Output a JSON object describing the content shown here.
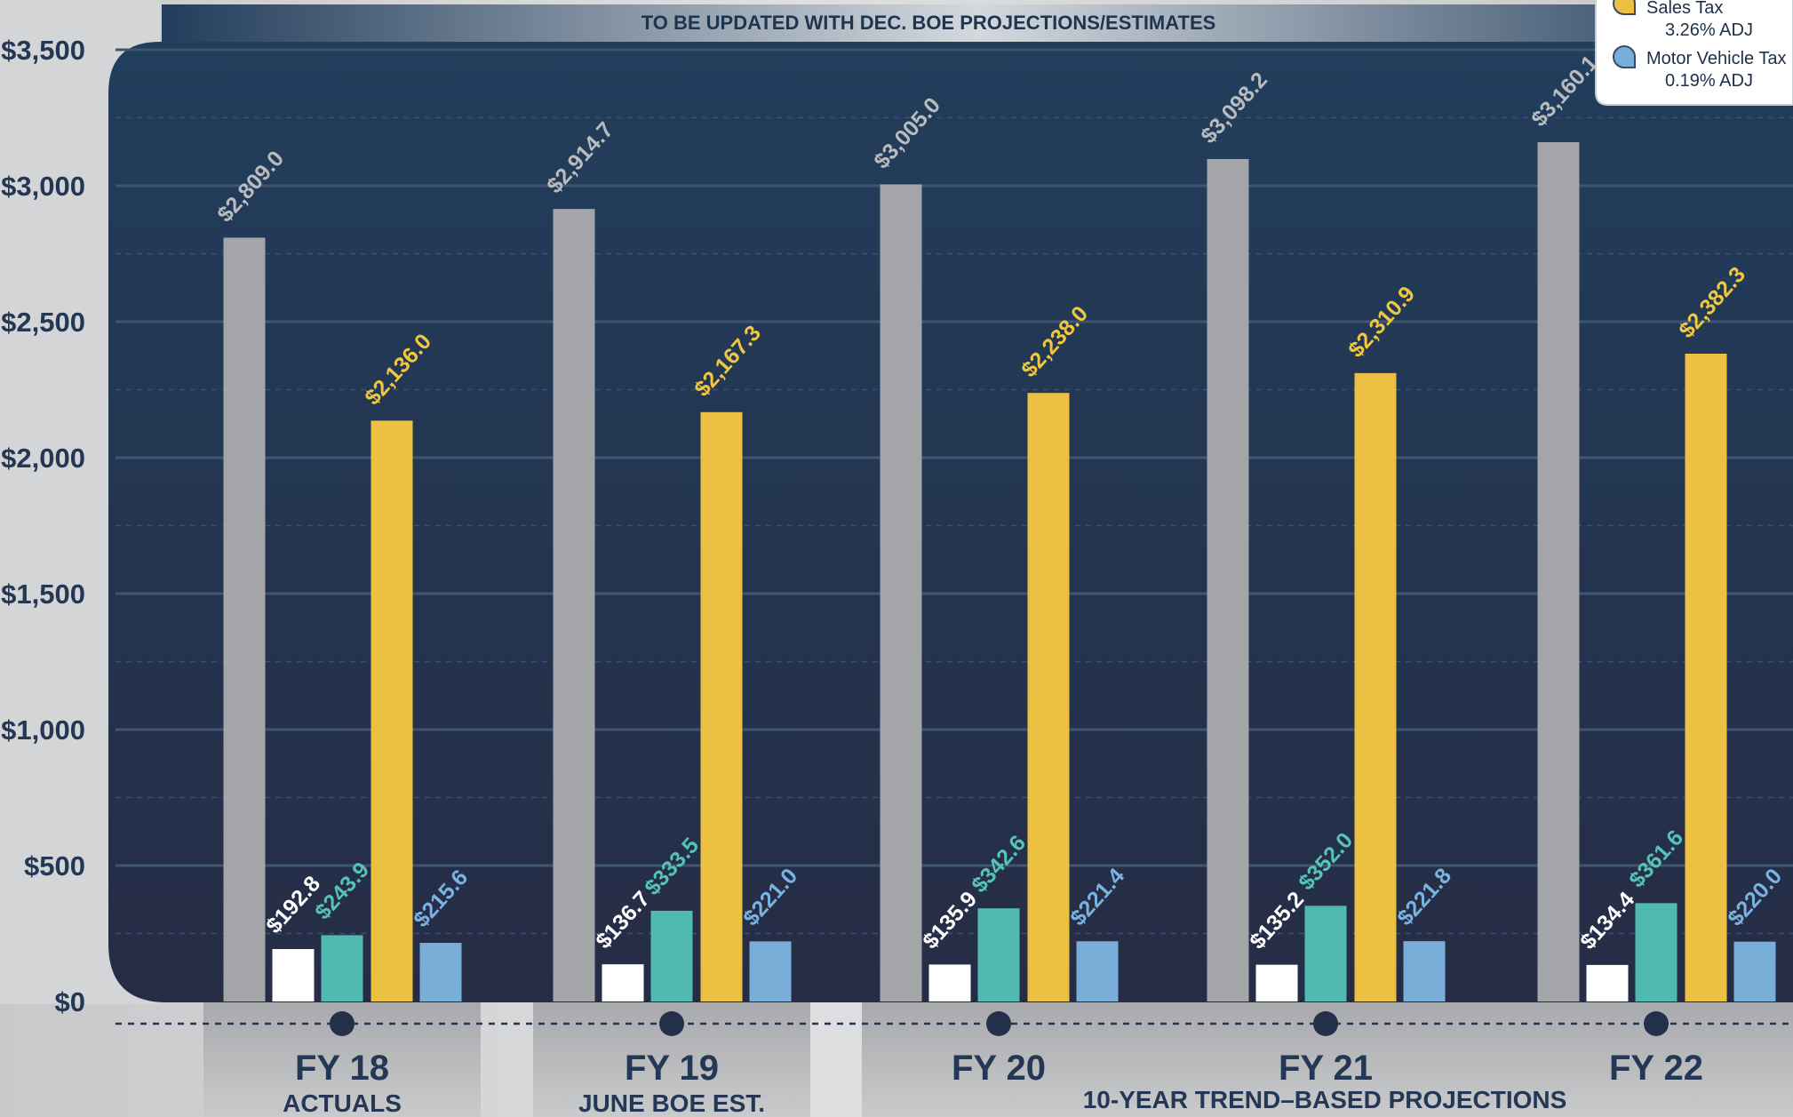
{
  "banner": "TO BE UPDATED WITH DEC. BOE PROJECTIONS/ESTIMATES",
  "legend": [
    {
      "name": "Sales Tax",
      "note": "3.26% ADJ",
      "color": "#ecc143"
    },
    {
      "name": "Motor Vehicle Tax",
      "note": "0.19% ADJ",
      "color": "#79aed8"
    }
  ],
  "chart_data": {
    "type": "bar",
    "categories": [
      "FY 18",
      "FY 19",
      "FY 20",
      "FY 21",
      "FY 22"
    ],
    "category_sublabels": [
      "ACTUALS",
      "JUNE BOE EST.",
      "10-YEAR TREND–BASED PROJECTIONS"
    ],
    "ylim": [
      0,
      3500
    ],
    "yticks": [
      0,
      500,
      1000,
      1500,
      2000,
      2500,
      3000,
      3500
    ],
    "ytick_labels": [
      "$0",
      "$500",
      "$1,000",
      "$1,500",
      "$2,000",
      "$2,500",
      "$3,000",
      "$3,500"
    ],
    "grid": true,
    "legend_position": "top-right",
    "series": [
      {
        "color": "#a4a5a8",
        "label_color": "#b9bbbf",
        "values": [
          2809.0,
          2914.7,
          3005.0,
          3098.2,
          3160.1
        ],
        "labels": [
          "$2,809.0",
          "$2,914.7",
          "$3,005.0",
          "$3,098.2",
          "$3,160.1"
        ]
      },
      {
        "color": "#ffffff",
        "label_color": "#ffffff",
        "values": [
          192.8,
          136.7,
          135.9,
          135.2,
          134.4
        ],
        "labels": [
          "$192.8",
          "$136.7",
          "$135.9",
          "$135.2",
          "$134.4"
        ]
      },
      {
        "color": "#50bab2",
        "label_color": "#56c3b9",
        "values": [
          243.9,
          333.5,
          342.6,
          352.0,
          361.6
        ],
        "labels": [
          "$243.9",
          "$333.5",
          "$342.6",
          "$352.0",
          "$361.6"
        ]
      },
      {
        "name": "Sales Tax",
        "color": "#ecc143",
        "label_color": "#f0c73f",
        "values": [
          2136.0,
          2167.3,
          2238.0,
          2310.9,
          2382.3
        ],
        "labels": [
          "$2,136.0",
          "$2,167.3",
          "$2,238.0",
          "$2,310.9",
          "$2,382.3"
        ]
      },
      {
        "name": "Motor Vehicle Tax",
        "color": "#79aed8",
        "label_color": "#7bb3e0",
        "values": [
          215.6,
          221.0,
          221.4,
          221.8,
          220.0
        ],
        "labels": [
          "$215.6",
          "$221.0",
          "$221.4",
          "$221.8",
          "$220.0"
        ]
      }
    ]
  }
}
